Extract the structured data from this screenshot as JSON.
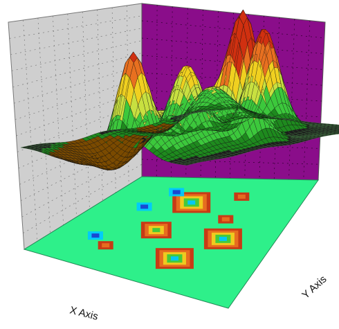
{
  "chart_data": {
    "type": "surface-3d",
    "title": "",
    "xlabel": "X Axis",
    "ylabel": "Y Axis",
    "zlabel": "",
    "has_base_contour_projection": true,
    "grid": true,
    "colors": {
      "left_wall": "#cfcfcf",
      "back_wall": "#8a0d8a",
      "floor": "#2ef08a",
      "colormap": [
        "#7a4a00",
        "#1e8a1e",
        "#3cc83c",
        "#c8e040",
        "#f0d020",
        "#e87020",
        "#d03010"
      ]
    },
    "peaks": [
      {
        "x": -0.55,
        "y": -0.15,
        "z": 5.0
      },
      {
        "x": 0.05,
        "y": 0.55,
        "z": 6.4
      },
      {
        "x": 0.55,
        "y": 0.25,
        "z": 5.2
      },
      {
        "x": 0.1,
        "y": -0.2,
        "z": 3.6
      },
      {
        "x": 0.6,
        "y": -0.5,
        "z": 2.2
      },
      {
        "x": -0.3,
        "y": 0.4,
        "z": 2.4
      },
      {
        "x": -0.75,
        "y": 0.35,
        "z": 2.0
      }
    ],
    "troughs": [
      {
        "x": -0.35,
        "y": -0.6,
        "z": -1.5
      },
      {
        "x": 0.45,
        "y": -0.7,
        "z": -1.0
      },
      {
        "x": -0.75,
        "y": -0.45,
        "z": -0.8
      }
    ]
  }
}
